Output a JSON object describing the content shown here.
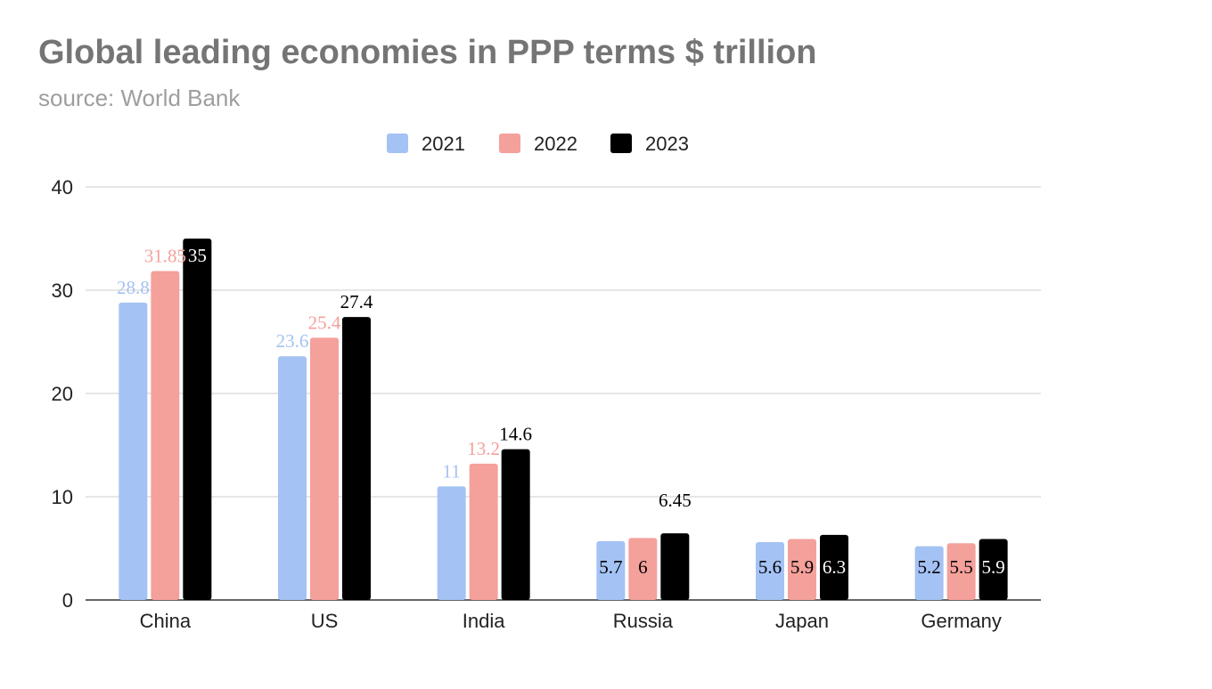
{
  "title": "Global leading economies in PPP terms $ trillion",
  "subtitle": "source: World Bank",
  "chart_data": {
    "type": "bar",
    "title": "Global leading economies in PPP terms $ trillion",
    "subtitle": "source: World Bank",
    "categories": [
      "China",
      "US",
      "India",
      "Russia",
      "Japan",
      "Germany"
    ],
    "series": [
      {
        "name": "2021",
        "color": "#a4c2f4",
        "label_color": "#a4c2f4",
        "values": [
          28.8,
          23.6,
          11,
          5.7,
          5.6,
          5.2
        ],
        "labels": [
          "28.8",
          "23.6",
          "11",
          "5.7",
          "5.6",
          "5.2"
        ]
      },
      {
        "name": "2022",
        "color": "#f4a09b",
        "label_color": "#f4a09b",
        "values": [
          31.85,
          25.4,
          13.2,
          6,
          5.9,
          5.5
        ],
        "labels": [
          "31.85",
          "25.4",
          "13.2",
          "6",
          "5.9",
          "5.5"
        ]
      },
      {
        "name": "2023",
        "color": "#000000",
        "label_color": "#000000",
        "values": [
          35,
          27.4,
          14.6,
          6.45,
          6.3,
          5.9
        ],
        "labels": [
          "35",
          "27.4",
          "14.6",
          "6.45",
          "6.3",
          "5.9"
        ]
      }
    ],
    "ylim": [
      0,
      40
    ],
    "yticks": [
      0,
      10,
      20,
      30,
      40
    ],
    "xlabel": "",
    "ylabel": "",
    "grid": true,
    "legend_position": "top-center"
  }
}
